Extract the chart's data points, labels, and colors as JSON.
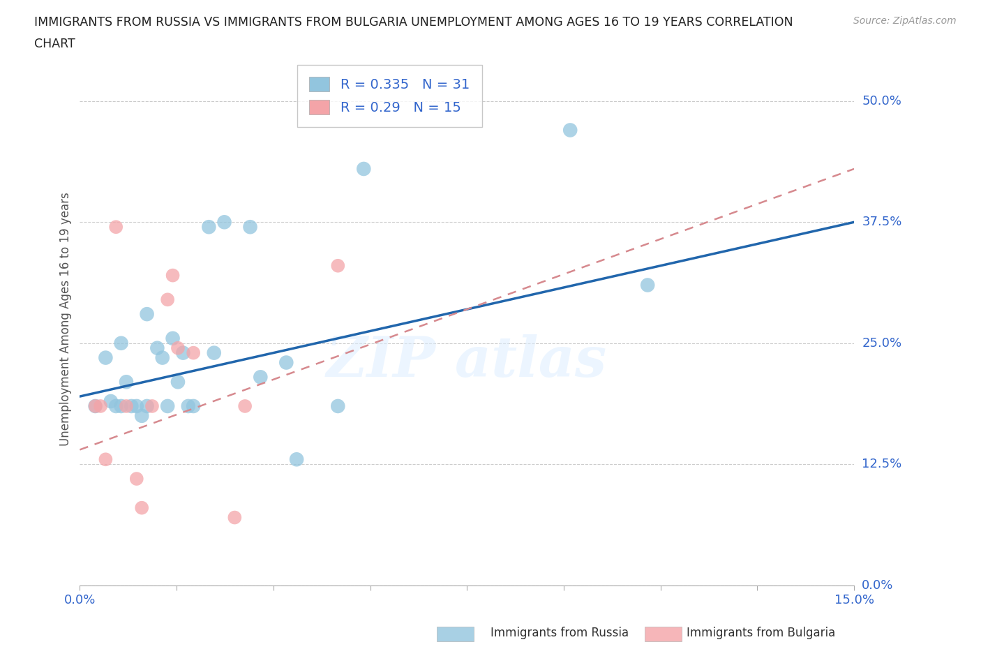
{
  "title_line1": "IMMIGRANTS FROM RUSSIA VS IMMIGRANTS FROM BULGARIA UNEMPLOYMENT AMONG AGES 16 TO 19 YEARS CORRELATION",
  "title_line2": "CHART",
  "source": "Source: ZipAtlas.com",
  "ylabel_label": "Unemployment Among Ages 16 to 19 years",
  "ylabel_ticks": [
    0.0,
    12.5,
    25.0,
    37.5,
    50.0
  ],
  "xlim": [
    0.0,
    0.15
  ],
  "ylim": [
    0.0,
    0.55
  ],
  "russia_R": 0.335,
  "russia_N": 31,
  "bulgaria_R": 0.29,
  "bulgaria_N": 15,
  "russia_color": "#92c5de",
  "bulgaria_color": "#f4a4a8",
  "russia_line_color": "#2166ac",
  "bulgaria_line_color": "#d6898e",
  "russia_trend": [
    0.195,
    0.375
  ],
  "bulgaria_trend": [
    0.14,
    0.43
  ],
  "russia_x": [
    0.003,
    0.005,
    0.006,
    0.007,
    0.008,
    0.008,
    0.009,
    0.01,
    0.011,
    0.012,
    0.013,
    0.013,
    0.015,
    0.016,
    0.017,
    0.018,
    0.019,
    0.02,
    0.021,
    0.022,
    0.025,
    0.026,
    0.028,
    0.033,
    0.035,
    0.04,
    0.042,
    0.05,
    0.055,
    0.095,
    0.11
  ],
  "russia_y": [
    0.185,
    0.235,
    0.19,
    0.185,
    0.25,
    0.185,
    0.21,
    0.185,
    0.185,
    0.175,
    0.185,
    0.28,
    0.245,
    0.235,
    0.185,
    0.255,
    0.21,
    0.24,
    0.185,
    0.185,
    0.37,
    0.24,
    0.375,
    0.37,
    0.215,
    0.23,
    0.13,
    0.185,
    0.43,
    0.47,
    0.31
  ],
  "bulgaria_x": [
    0.003,
    0.004,
    0.005,
    0.007,
    0.009,
    0.011,
    0.012,
    0.014,
    0.017,
    0.018,
    0.019,
    0.022,
    0.03,
    0.032,
    0.05
  ],
  "bulgaria_y": [
    0.185,
    0.185,
    0.13,
    0.37,
    0.185,
    0.11,
    0.08,
    0.185,
    0.295,
    0.32,
    0.245,
    0.24,
    0.07,
    0.185,
    0.33
  ]
}
